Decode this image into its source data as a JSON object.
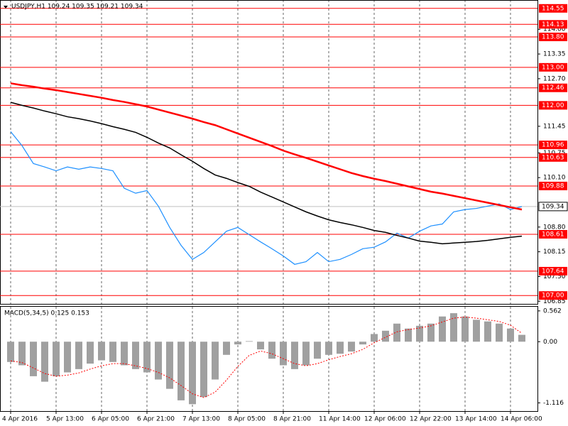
{
  "chart_data": [
    {
      "type": "line",
      "title": "USDJPY,H1  109.24 109.35 109.21 109.34",
      "categories": [
        "4 Apr 2016",
        null,
        null,
        null,
        "5 Apr 13:00",
        null,
        null,
        null,
        "6 Apr 05:00",
        null,
        null,
        null,
        "6 Apr 21:00",
        null,
        null,
        null,
        "7 Apr 13:00",
        null,
        null,
        null,
        "8 Apr 05:00",
        null,
        null,
        null,
        "8 Apr 21:00",
        null,
        null,
        null,
        "11 Apr 14:00",
        null,
        null,
        null,
        "12 Apr 06:00",
        null,
        null,
        null,
        "12 Apr 22:00",
        null,
        null,
        null,
        "13 Apr 14:00",
        null,
        null,
        null,
        "14 Apr 06:00",
        null
      ],
      "series": [
        {
          "color": "#1e90ff",
          "values": [
            111.31,
            110.94,
            110.47,
            110.38,
            110.28,
            110.38,
            110.32,
            110.38,
            110.34,
            110.28,
            109.82,
            109.69,
            109.76,
            109.35,
            108.79,
            108.32,
            107.95,
            108.13,
            108.41,
            108.69,
            108.79,
            108.6,
            108.41,
            108.23,
            108.04,
            107.82,
            107.89,
            108.13,
            107.89,
            107.95,
            108.08,
            108.23,
            108.27,
            108.41,
            108.64,
            108.51,
            108.69,
            108.83,
            108.88,
            109.2,
            109.26,
            109.29,
            109.35,
            109.41,
            109.26,
            109.34
          ]
        },
        {
          "color": "#ff0000",
          "values": [
            112.58,
            112.53,
            112.49,
            112.44,
            112.4,
            112.35,
            112.3,
            112.25,
            112.2,
            112.14,
            112.09,
            112.03,
            111.97,
            111.89,
            111.81,
            111.73,
            111.65,
            111.56,
            111.48,
            111.37,
            111.26,
            111.15,
            111.04,
            110.93,
            110.81,
            110.71,
            110.62,
            110.52,
            110.42,
            110.32,
            110.22,
            110.14,
            110.07,
            110.01,
            109.94,
            109.87,
            109.8,
            109.73,
            109.68,
            109.62,
            109.56,
            109.5,
            109.44,
            109.38,
            109.32,
            109.26
          ]
        },
        {
          "color": "#000000",
          "values": [
            112.08,
            112.0,
            111.93,
            111.85,
            111.78,
            111.7,
            111.65,
            111.59,
            111.52,
            111.44,
            111.37,
            111.29,
            111.16,
            111.01,
            110.88,
            110.7,
            110.53,
            110.34,
            110.17,
            110.08,
            109.97,
            109.87,
            109.72,
            109.59,
            109.46,
            109.33,
            109.2,
            109.09,
            108.99,
            108.92,
            108.86,
            108.79,
            108.71,
            108.66,
            108.58,
            108.51,
            108.43,
            108.4,
            108.36,
            108.38,
            108.4,
            108.42,
            108.45,
            108.49,
            108.53,
            108.56
          ]
        }
      ],
      "ylim": [
        106.78,
        114.77
      ],
      "yticks": [
        {
          "value": 114,
          "label": "114.00"
        },
        113.35,
        {
          "value": 112.7,
          "label": "112.70"
        },
        111.45,
        110.75,
        {
          "value": 110.1,
          "label": "110.10"
        },
        {
          "value": 108.8,
          "label": "108.80"
        },
        108.15,
        {
          "value": 107.5,
          "label": "107.50"
        },
        106.85
      ],
      "levels": [
        114.55,
        114.13,
        {
          "value": 113.8,
          "label": "113.80"
        },
        {
          "value": 113,
          "label": "113.00"
        },
        112.46,
        {
          "value": 112,
          "label": "112.00"
        },
        110.96,
        110.63,
        109.88,
        108.61,
        107.64,
        {
          "value": 107,
          "label": "107.00"
        }
      ],
      "level_color": "#ff0000",
      "current_price": 109.34,
      "grid": true
    },
    {
      "type": "bar",
      "title": "MACD(5,34,5) 0.125 0.153",
      "series": [
        {
          "type": "bar",
          "color": "#a0a0a0",
          "values": [
            -0.37,
            -0.43,
            -0.63,
            -0.73,
            -0.63,
            -0.56,
            -0.5,
            -0.4,
            -0.34,
            -0.37,
            -0.43,
            -0.5,
            -0.56,
            -0.69,
            -0.86,
            -1.07,
            -1.14,
            -1.01,
            -0.69,
            -0.24,
            -0.05,
            0.01,
            -0.14,
            -0.31,
            -0.43,
            -0.5,
            -0.43,
            -0.31,
            -0.24,
            -0.22,
            -0.18,
            -0.05,
            0.14,
            0.2,
            0.33,
            0.24,
            0.29,
            0.33,
            0.46,
            0.52,
            0.46,
            0.4,
            0.37,
            0.33,
            0.24,
            0.125
          ]
        },
        {
          "type": "line",
          "color": "#ff0000",
          "values": [
            -0.35,
            -0.38,
            -0.48,
            -0.58,
            -0.63,
            -0.61,
            -0.57,
            -0.5,
            -0.44,
            -0.4,
            -0.4,
            -0.44,
            -0.49,
            -0.56,
            -0.66,
            -0.8,
            -0.95,
            -1.02,
            -0.92,
            -0.7,
            -0.45,
            -0.25,
            -0.17,
            -0.22,
            -0.31,
            -0.4,
            -0.44,
            -0.4,
            -0.33,
            -0.27,
            -0.22,
            -0.14,
            -0.02,
            0.08,
            0.18,
            0.22,
            0.25,
            0.29,
            0.36,
            0.43,
            0.45,
            0.43,
            0.4,
            0.37,
            0.3,
            0.153
          ]
        }
      ],
      "ylim": [
        -1.266,
        0.651
      ],
      "yticks": [
        0.562,
        {
          "value": 0,
          "label": "0.00"
        },
        -1.116
      ],
      "grid": true
    }
  ]
}
